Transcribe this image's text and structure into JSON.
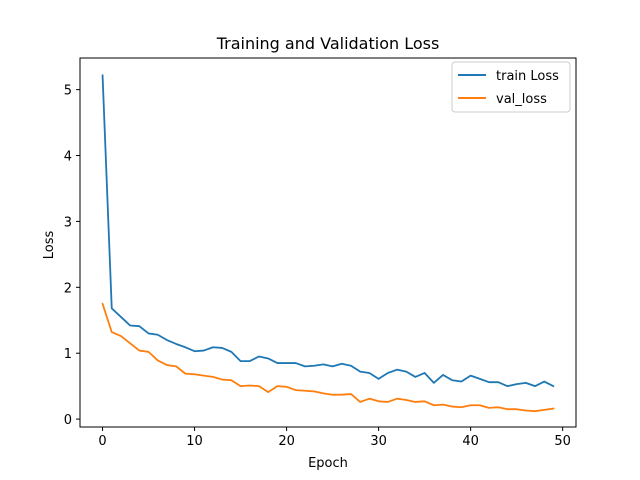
{
  "chart_data": {
    "type": "line",
    "title": "Training and Validation Loss",
    "xlabel": "Epoch",
    "ylabel": "Loss",
    "xlim": [
      -2.45,
      51.45
    ],
    "ylim": [
      -0.12,
      5.48
    ],
    "xticks": [
      0,
      10,
      20,
      30,
      40,
      50
    ],
    "yticks": [
      0,
      1,
      2,
      3,
      4,
      5
    ],
    "grid": false,
    "legend_position": "top-right",
    "x": [
      0,
      1,
      2,
      3,
      4,
      5,
      6,
      7,
      8,
      9,
      10,
      11,
      12,
      13,
      14,
      15,
      16,
      17,
      18,
      19,
      20,
      21,
      22,
      23,
      24,
      25,
      26,
      27,
      28,
      29,
      30,
      31,
      32,
      33,
      34,
      35,
      36,
      37,
      38,
      39,
      40,
      41,
      42,
      43,
      44,
      45,
      46,
      47,
      48,
      49
    ],
    "series": [
      {
        "name": "train Loss",
        "color": "#1f77b4",
        "values": [
          5.22,
          1.68,
          1.55,
          1.42,
          1.41,
          1.3,
          1.28,
          1.2,
          1.14,
          1.09,
          1.03,
          1.04,
          1.09,
          1.08,
          1.02,
          0.88,
          0.88,
          0.95,
          0.92,
          0.85,
          0.85,
          0.85,
          0.8,
          0.81,
          0.83,
          0.8,
          0.84,
          0.81,
          0.72,
          0.7,
          0.61,
          0.7,
          0.75,
          0.72,
          0.64,
          0.7,
          0.55,
          0.67,
          0.59,
          0.57,
          0.66,
          0.61,
          0.56,
          0.56,
          0.5,
          0.53,
          0.55,
          0.5,
          0.57,
          0.5
        ]
      },
      {
        "name": "val_loss",
        "color": "#ff7f0e",
        "values": [
          1.75,
          1.32,
          1.26,
          1.15,
          1.04,
          1.02,
          0.89,
          0.82,
          0.8,
          0.69,
          0.68,
          0.66,
          0.64,
          0.6,
          0.59,
          0.5,
          0.51,
          0.5,
          0.41,
          0.5,
          0.49,
          0.44,
          0.43,
          0.42,
          0.39,
          0.37,
          0.37,
          0.38,
          0.26,
          0.31,
          0.27,
          0.26,
          0.31,
          0.29,
          0.26,
          0.27,
          0.21,
          0.22,
          0.19,
          0.18,
          0.21,
          0.21,
          0.17,
          0.18,
          0.15,
          0.15,
          0.13,
          0.12,
          0.14,
          0.16
        ]
      }
    ]
  }
}
